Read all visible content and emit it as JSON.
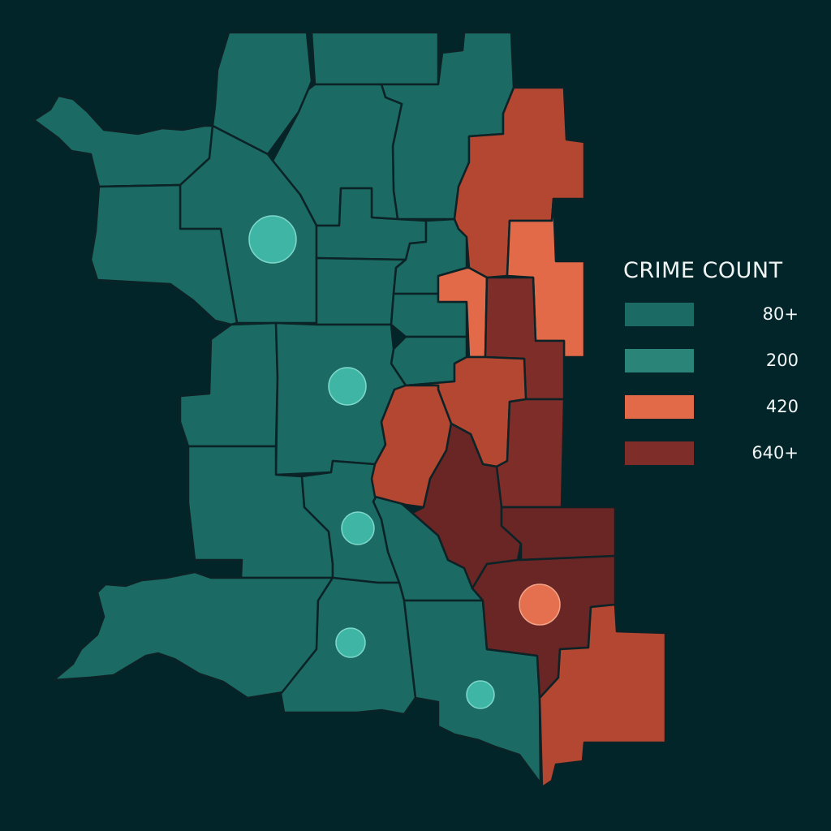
{
  "colors": {
    "background": "#02252a",
    "border": "#0b2226",
    "teal": "#1b6b64",
    "teal_light": "#2a8578",
    "orange": "#e26a48",
    "red": "#b34732",
    "dark_red": "#7f2d29",
    "darkest_red": "#692624",
    "marker_teal": "#3fb6a5",
    "marker_orange": "#e57050"
  },
  "legend": {
    "title": "CRIME COUNT",
    "items": [
      {
        "label": "80+",
        "color": "#1b6b64"
      },
      {
        "label": "200",
        "color": "#2a8578"
      },
      {
        "label": "420",
        "color": "#e26a48"
      },
      {
        "label": "640+",
        "color": "#7f2d29"
      }
    ]
  },
  "districts": [
    {
      "name": "nw-coast",
      "color": "teal"
    },
    {
      "name": "north-1",
      "color": "teal"
    },
    {
      "name": "north-2",
      "color": "teal"
    },
    {
      "name": "north-3",
      "color": "teal"
    },
    {
      "name": "north-4",
      "color": "teal"
    },
    {
      "name": "west-1",
      "color": "teal"
    },
    {
      "name": "central-north",
      "color": "teal"
    },
    {
      "name": "central-1",
      "color": "teal"
    },
    {
      "name": "central-2",
      "color": "teal"
    },
    {
      "name": "central-3",
      "color": "teal"
    },
    {
      "name": "east-strip-1",
      "color": "teal"
    },
    {
      "name": "east-strip-2",
      "color": "teal"
    },
    {
      "name": "west-2",
      "color": "teal"
    },
    {
      "name": "center",
      "color": "teal"
    },
    {
      "name": "west-3",
      "color": "teal"
    },
    {
      "name": "south-central",
      "color": "teal"
    },
    {
      "name": "south-center-2",
      "color": "teal"
    },
    {
      "name": "southwest",
      "color": "teal"
    },
    {
      "name": "south-1",
      "color": "teal"
    },
    {
      "name": "south-2",
      "color": "teal"
    },
    {
      "name": "east-north-1",
      "color": "red"
    },
    {
      "name": "east-north-2",
      "color": "orange"
    },
    {
      "name": "east-mid-1",
      "color": "orange"
    },
    {
      "name": "east-mid-2",
      "color": "dark_red"
    },
    {
      "name": "east-center-1",
      "color": "red"
    },
    {
      "name": "east-center-2",
      "color": "red"
    },
    {
      "name": "east-center-3",
      "color": "dark_red"
    },
    {
      "name": "east-south-1",
      "color": "darkest_red"
    },
    {
      "name": "east-south-2",
      "color": "darkest_red"
    },
    {
      "name": "east-south-3",
      "color": "darkest_red"
    },
    {
      "name": "southeast",
      "color": "red"
    }
  ],
  "markers": [
    {
      "name": "marker-1",
      "color": "marker_teal",
      "level": "large"
    },
    {
      "name": "marker-2",
      "color": "marker_teal",
      "level": "medium"
    },
    {
      "name": "marker-3",
      "color": "marker_teal",
      "level": "small"
    },
    {
      "name": "marker-4",
      "color": "marker_teal",
      "level": "small"
    },
    {
      "name": "marker-5",
      "color": "marker_teal",
      "level": "small"
    },
    {
      "name": "marker-6",
      "color": "marker_orange",
      "level": "medium"
    }
  ]
}
